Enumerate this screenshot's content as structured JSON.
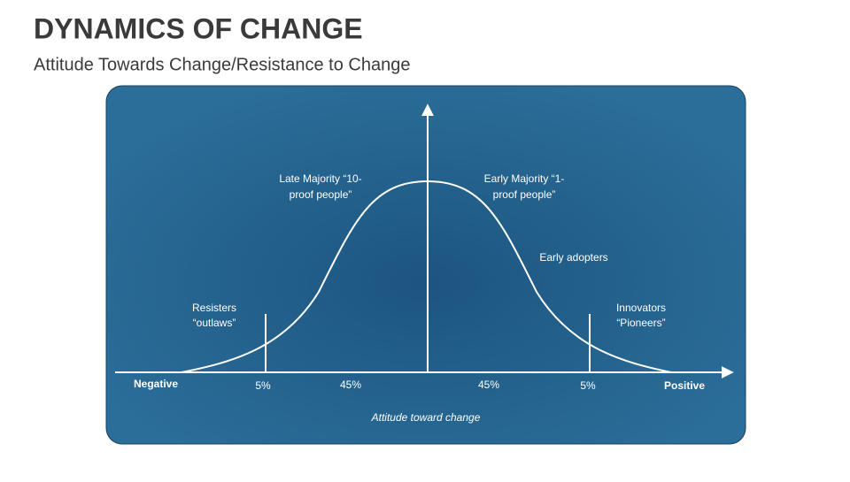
{
  "header": {
    "title": "DYNAMICS OF CHANGE",
    "subtitle": "Attitude Towards Change/Resistance to Change"
  },
  "diagram": {
    "groups": [
      {
        "lines": [
          "Resisters",
          "“outlaws”"
        ]
      },
      {
        "lines": [
          "Late Majority “10-",
          "proof people”"
        ]
      },
      {
        "lines": [
          "Early Majority “1-",
          "proof people”"
        ]
      },
      {
        "lines": [
          "Early adopters"
        ]
      },
      {
        "lines": [
          "Innovators",
          "“Pioneers”"
        ]
      }
    ],
    "shares": [
      "5%",
      "45%",
      "45%",
      "5%"
    ],
    "axis": {
      "negative": "Negative",
      "positive": "Positive",
      "title": "Attitude toward change"
    }
  }
}
